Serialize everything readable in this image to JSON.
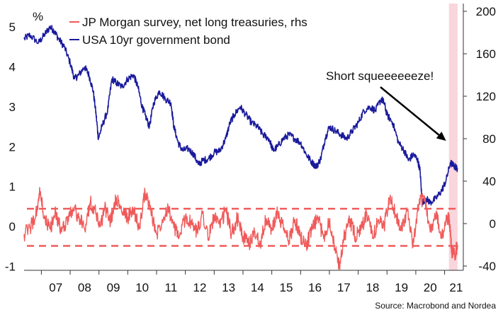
{
  "chart_data": {
    "type": "line",
    "title": "",
    "left_axis": {
      "unit_label": "%",
      "ylim": [
        -1.1,
        5.5
      ],
      "ticks": [
        -1,
        0,
        1,
        2,
        3,
        4,
        5
      ]
    },
    "right_axis": {
      "ylim": [
        -44,
        204
      ],
      "ticks": [
        -40,
        0,
        40,
        80,
        120,
        160,
        200
      ]
    },
    "x_axis": {
      "xlim": [
        2006.4,
        2021.65
      ],
      "tick_labels": [
        "07",
        "08",
        "09",
        "10",
        "11",
        "12",
        "13",
        "14",
        "15",
        "16",
        "17",
        "18",
        "19",
        "20",
        "21"
      ],
      "tick_positions": [
        2007.5,
        2008.5,
        2009.5,
        2010.5,
        2011.5,
        2012.5,
        2013.5,
        2014.5,
        2015.5,
        2016.5,
        2017.5,
        2018.5,
        2019.5,
        2020.5,
        2021.4
      ]
    },
    "highlight_band": {
      "x_start": 2021.15,
      "x_end": 2021.45,
      "color": "#f9d5dc"
    },
    "reference_lines": [
      {
        "axis": "right",
        "value": 14,
        "style": "dashed",
        "color": "#f05a5a"
      },
      {
        "axis": "right",
        "value": -21,
        "style": "dashed",
        "color": "#f05a5a"
      }
    ],
    "series": [
      {
        "name": "USA 10yr government bond",
        "axis": "left",
        "color": "#1a1a9c",
        "x": [
          2006.4,
          2006.6,
          2006.9,
          2007.1,
          2007.3,
          2007.45,
          2007.6,
          2007.8,
          2008.0,
          2008.15,
          2008.3,
          2008.5,
          2008.65,
          2008.8,
          2008.9,
          2008.98,
          2009.1,
          2009.3,
          2009.45,
          2009.6,
          2009.8,
          2010.0,
          2010.2,
          2010.35,
          2010.5,
          2010.6,
          2010.75,
          2010.9,
          2011.1,
          2011.3,
          2011.5,
          2011.6,
          2011.75,
          2011.9,
          2012.1,
          2012.3,
          2012.45,
          2012.6,
          2012.8,
          2013.0,
          2013.2,
          2013.4,
          2013.55,
          2013.7,
          2013.9,
          2014.1,
          2014.3,
          2014.5,
          2014.7,
          2014.9,
          2015.05,
          2015.2,
          2015.4,
          2015.6,
          2015.8,
          2016.0,
          2016.2,
          2016.4,
          2016.55,
          2016.7,
          2016.85,
          2017.0,
          2017.2,
          2017.4,
          2017.6,
          2017.8,
          2018.0,
          2018.2,
          2018.4,
          2018.6,
          2018.8,
          2018.9,
          2019.0,
          2019.2,
          2019.4,
          2019.6,
          2019.75,
          2019.9,
          2020.05,
          2020.15,
          2020.22,
          2020.35,
          2020.5,
          2020.7,
          2020.9,
          2021.05,
          2021.2,
          2021.35,
          2021.45
        ],
        "values": [
          4.7,
          4.8,
          4.6,
          4.8,
          5.0,
          4.9,
          4.7,
          4.5,
          4.1,
          3.7,
          3.8,
          4.0,
          3.8,
          3.4,
          2.8,
          2.2,
          2.5,
          2.9,
          3.7,
          3.6,
          3.5,
          3.7,
          3.8,
          3.5,
          3.0,
          2.8,
          2.5,
          3.1,
          3.4,
          3.2,
          3.1,
          2.5,
          2.1,
          1.9,
          1.95,
          1.8,
          1.55,
          1.65,
          1.7,
          1.85,
          1.9,
          2.2,
          2.6,
          2.8,
          3.0,
          2.8,
          2.6,
          2.5,
          2.3,
          2.2,
          1.9,
          2.0,
          2.2,
          2.3,
          2.2,
          2.1,
          1.8,
          1.6,
          1.5,
          1.7,
          2.2,
          2.5,
          2.4,
          2.3,
          2.2,
          2.4,
          2.6,
          2.9,
          3.0,
          2.9,
          3.2,
          3.1,
          2.8,
          2.6,
          2.1,
          1.9,
          1.65,
          1.8,
          1.7,
          1.4,
          0.6,
          0.7,
          0.6,
          0.7,
          0.9,
          1.15,
          1.6,
          1.5,
          1.45
        ]
      },
      {
        "name": "JP Morgan survey, net long treasuries, rhs",
        "axis": "right",
        "color": "#f05a5a",
        "x": [
          2006.4,
          2006.6,
          2006.8,
          2006.95,
          2007.1,
          2007.3,
          2007.5,
          2007.7,
          2007.9,
          2008.1,
          2008.3,
          2008.5,
          2008.7,
          2008.9,
          2009.05,
          2009.2,
          2009.4,
          2009.6,
          2009.8,
          2010.0,
          2010.2,
          2010.4,
          2010.6,
          2010.8,
          2011.0,
          2011.2,
          2011.4,
          2011.6,
          2011.8,
          2012.0,
          2012.2,
          2012.4,
          2012.6,
          2012.8,
          2013.0,
          2013.2,
          2013.4,
          2013.6,
          2013.8,
          2014.0,
          2014.2,
          2014.4,
          2014.6,
          2014.8,
          2015.0,
          2015.2,
          2015.4,
          2015.6,
          2015.8,
          2016.0,
          2016.2,
          2016.4,
          2016.6,
          2016.8,
          2017.0,
          2017.2,
          2017.35,
          2017.5,
          2017.7,
          2017.9,
          2018.1,
          2018.3,
          2018.5,
          2018.7,
          2018.9,
          2019.1,
          2019.3,
          2019.5,
          2019.7,
          2019.9,
          2020.1,
          2020.3,
          2020.5,
          2020.7,
          2020.9,
          2021.05,
          2021.15,
          2021.25,
          2021.35,
          2021.45
        ],
        "values": [
          -10,
          -4,
          6,
          30,
          5,
          -5,
          10,
          -8,
          4,
          15,
          6,
          -5,
          20,
          10,
          -3,
          15,
          2,
          25,
          10,
          6,
          14,
          -5,
          30,
          12,
          -10,
          4,
          16,
          -4,
          -12,
          6,
          0,
          -8,
          10,
          -14,
          8,
          -4,
          14,
          -10,
          5,
          -12,
          -20,
          -8,
          -18,
          4,
          -6,
          10,
          -4,
          -16,
          4,
          -12,
          -20,
          -6,
          6,
          -14,
          4,
          -24,
          -40,
          -14,
          4,
          -12,
          -6,
          10,
          -14,
          4,
          -2,
          24,
          8,
          -4,
          12,
          -22,
          18,
          26,
          -8,
          10,
          -14,
          4,
          6,
          -26,
          -30,
          -20
        ]
      }
    ]
  },
  "legend": {
    "items": [
      {
        "label": "JP Morgan survey, net long treasuries, rhs",
        "color": "#f05a5a"
      },
      {
        "label": "USA 10yr government bond",
        "color": "#1a1a9c"
      }
    ]
  },
  "annotation": {
    "text": "Short squeeeeeeze!",
    "arrow_to": {
      "x": 2021.05,
      "y_right": 62
    }
  },
  "source": "Source: Macrobond and Nordea"
}
